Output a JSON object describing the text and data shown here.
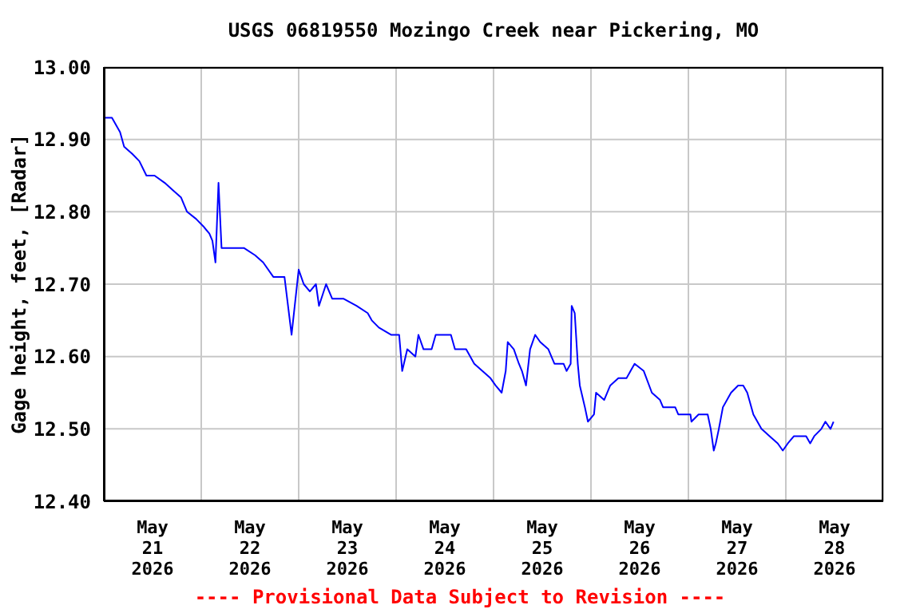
{
  "chart_data": {
    "type": "line",
    "title": "USGS 06819550 Mozingo Creek near Pickering, MO",
    "ylabel": "Gage height, feet, [Radar]",
    "annotations": [
      "---- Provisional Data Subject to Revision ----"
    ],
    "x": [
      "2026-05-21T00:00",
      "2026-05-21T02:00",
      "2026-05-21T04:00",
      "2026-05-21T05:00",
      "2026-05-21T07:00",
      "2026-05-21T08:45",
      "2026-05-21T10:30",
      "2026-05-21T12:30",
      "2026-05-21T15:00",
      "2026-05-21T17:00",
      "2026-05-21T19:00",
      "2026-05-21T20:30",
      "2026-05-21T22:45",
      "2026-05-22T00:30",
      "2026-05-22T02:00",
      "2026-05-22T02:45",
      "2026-05-22T03:30",
      "2026-05-22T04:15",
      "2026-05-22T05:00",
      "2026-05-22T07:45",
      "2026-05-22T10:30",
      "2026-05-22T13:15",
      "2026-05-22T15:15",
      "2026-05-22T17:45",
      "2026-05-22T20:30",
      "2026-05-22T22:15",
      "2026-05-23T00:00",
      "2026-05-23T01:15",
      "2026-05-23T02:45",
      "2026-05-23T04:15",
      "2026-05-23T05:00",
      "2026-05-23T06:45",
      "2026-05-23T08:15",
      "2026-05-23T11:00",
      "2026-05-23T14:15",
      "2026-05-23T17:00",
      "2026-05-23T18:00",
      "2026-05-23T19:45",
      "2026-05-23T22:45",
      "2026-05-24T00:45",
      "2026-05-24T01:30",
      "2026-05-24T02:45",
      "2026-05-24T04:45",
      "2026-05-24T05:30",
      "2026-05-24T06:45",
      "2026-05-24T08:45",
      "2026-05-24T09:45",
      "2026-05-24T13:30",
      "2026-05-24T14:30",
      "2026-05-24T17:15",
      "2026-05-24T19:15",
      "2026-05-24T21:15",
      "2026-05-24T23:15",
      "2026-05-25T00:30",
      "2026-05-25T02:00",
      "2026-05-25T03:00",
      "2026-05-25T03:30",
      "2026-05-25T05:00",
      "2026-05-25T06:15",
      "2026-05-25T07:00",
      "2026-05-25T08:00",
      "2026-05-25T09:00",
      "2026-05-25T10:15",
      "2026-05-25T11:30",
      "2026-05-25T13:30",
      "2026-05-25T15:00",
      "2026-05-25T17:15",
      "2026-05-25T18:00",
      "2026-05-25T19:00",
      "2026-05-25T19:15",
      "2026-05-25T20:00",
      "2026-05-25T20:45",
      "2026-05-25T21:15",
      "2026-05-25T22:30",
      "2026-05-25T23:15",
      "2026-05-26T00:45",
      "2026-05-26T01:15",
      "2026-05-26T03:15",
      "2026-05-26T04:45",
      "2026-05-26T06:45",
      "2026-05-26T08:45",
      "2026-05-26T09:45",
      "2026-05-26T10:45",
      "2026-05-26T13:00",
      "2026-05-26T15:00",
      "2026-05-26T17:00",
      "2026-05-26T17:45",
      "2026-05-26T20:45",
      "2026-05-26T21:30",
      "2026-05-27T00:30",
      "2026-05-27T00:45",
      "2026-05-27T02:30",
      "2026-05-27T04:45",
      "2026-05-27T05:30",
      "2026-05-27T06:15",
      "2026-05-27T06:45",
      "2026-05-27T07:30",
      "2026-05-27T08:30",
      "2026-05-27T10:30",
      "2026-05-27T12:15",
      "2026-05-27T13:30",
      "2026-05-27T14:30",
      "2026-05-27T16:00",
      "2026-05-27T18:00",
      "2026-05-27T20:00",
      "2026-05-27T22:00",
      "2026-05-27T23:15",
      "2026-05-28T00:30",
      "2026-05-28T02:00",
      "2026-05-28T05:00",
      "2026-05-28T06:00",
      "2026-05-28T07:00",
      "2026-05-28T08:45",
      "2026-05-28T09:45",
      "2026-05-28T11:00",
      "2026-05-28T11:45"
    ],
    "series": [
      {
        "color": "#0000ff",
        "values": [
          12.93,
          12.93,
          12.91,
          12.89,
          12.88,
          12.87,
          12.85,
          12.85,
          12.84,
          12.83,
          12.82,
          12.8,
          12.79,
          12.78,
          12.77,
          12.76,
          12.73,
          12.84,
          12.75,
          12.75,
          12.75,
          12.74,
          12.73,
          12.71,
          12.71,
          12.63,
          12.72,
          12.7,
          12.69,
          12.7,
          12.67,
          12.7,
          12.68,
          12.68,
          12.67,
          12.66,
          12.65,
          12.64,
          12.63,
          12.63,
          12.58,
          12.61,
          12.6,
          12.63,
          12.61,
          12.61,
          12.63,
          12.63,
          12.61,
          12.61,
          12.59,
          12.58,
          12.57,
          12.56,
          12.55,
          12.58,
          12.62,
          12.61,
          12.59,
          12.58,
          12.56,
          12.61,
          12.63,
          12.62,
          12.61,
          12.59,
          12.59,
          12.58,
          12.59,
          12.67,
          12.66,
          12.59,
          12.56,
          12.53,
          12.51,
          12.52,
          12.55,
          12.54,
          12.56,
          12.57,
          12.57,
          12.58,
          12.59,
          12.58,
          12.55,
          12.54,
          12.53,
          12.53,
          12.52,
          12.52,
          12.51,
          12.52,
          12.52,
          12.5,
          12.47,
          12.48,
          12.5,
          12.53,
          12.55,
          12.56,
          12.56,
          12.55,
          12.52,
          12.5,
          12.49,
          12.48,
          12.47,
          12.48,
          12.49,
          12.49,
          12.48,
          12.49,
          12.5,
          12.51,
          12.5,
          12.51
        ]
      }
    ],
    "xlim": [
      "2026-05-21T00:00",
      "2026-05-29T00:00"
    ],
    "xticks": [
      {
        "value": "2026-05-21T00:00",
        "label": null
      },
      {
        "value": "2026-05-21T12:00",
        "label": "May\n21\n2026"
      },
      {
        "value": "2026-05-22T00:00",
        "label": null
      },
      {
        "value": "2026-05-22T12:00",
        "label": "May\n22\n2026"
      },
      {
        "value": "2026-05-23T00:00",
        "label": null
      },
      {
        "value": "2026-05-23T12:00",
        "label": "May\n23\n2026"
      },
      {
        "value": "2026-05-24T00:00",
        "label": null
      },
      {
        "value": "2026-05-24T12:00",
        "label": "May\n24\n2026"
      },
      {
        "value": "2026-05-25T00:00",
        "label": null
      },
      {
        "value": "2026-05-25T12:00",
        "label": "May\n25\n2026"
      },
      {
        "value": "2026-05-26T00:00",
        "label": null
      },
      {
        "value": "2026-05-26T12:00",
        "label": "May\n26\n2026"
      },
      {
        "value": "2026-05-27T00:00",
        "label": null
      },
      {
        "value": "2026-05-27T12:00",
        "label": "May\n27\n2026"
      },
      {
        "value": "2026-05-28T00:00",
        "label": null
      },
      {
        "value": "2026-05-28T12:00",
        "label": "May\n28\n2026"
      },
      {
        "value": "2026-05-29T00:00",
        "label": null
      }
    ],
    "ylim": [
      12.4,
      13.0
    ],
    "yticks": [
      {
        "value": 12.4,
        "label": "12.40"
      },
      {
        "value": 12.5,
        "label": "12.50"
      },
      {
        "value": 12.6,
        "label": "12.60"
      },
      {
        "value": 12.7,
        "label": "12.70"
      },
      {
        "value": 12.8,
        "label": "12.80"
      },
      {
        "value": 12.9,
        "label": "12.90"
      },
      {
        "value": 13.0,
        "label": "13.00"
      }
    ],
    "grid": true,
    "marker": "none",
    "line_style": "solid"
  }
}
